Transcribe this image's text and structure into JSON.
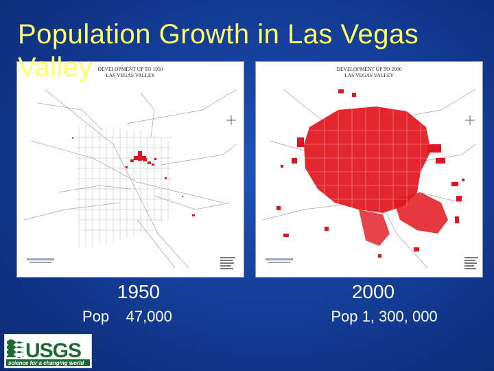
{
  "slide": {
    "title": "Population Growth in Las Vegas Valley"
  },
  "maps": [
    {
      "heading_line1": "DEVELOPMENT UP TO 1950",
      "heading_line2": "LAS VEGAS VALLEY",
      "year": "1950",
      "population": "Pop    47,000"
    },
    {
      "heading_line1": "DEVELOPMENT UP TO 2000",
      "heading_line2": "LAS VEGAS VALLEY",
      "year": "2000",
      "population": "Pop 1, 300, 000"
    }
  ],
  "logo": {
    "name": "USGS",
    "tagline": "science for a changing world"
  },
  "colors": {
    "title": "#ffff66",
    "background": "#143f9a",
    "development": "#e0151d",
    "usgs_green": "#1d6b34"
  }
}
